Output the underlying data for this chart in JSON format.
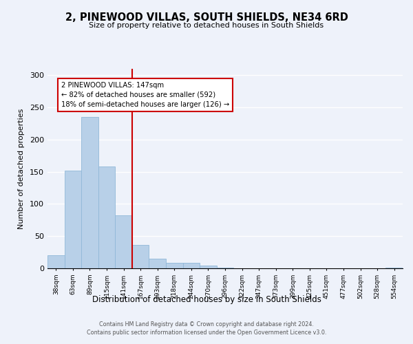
{
  "title": "2, PINEWOOD VILLAS, SOUTH SHIELDS, NE34 6RD",
  "subtitle": "Size of property relative to detached houses in South Shields",
  "xlabel": "Distribution of detached houses by size in South Shields",
  "ylabel": "Number of detached properties",
  "bin_labels": [
    "38sqm",
    "63sqm",
    "89sqm",
    "115sqm",
    "141sqm",
    "167sqm",
    "193sqm",
    "218sqm",
    "244sqm",
    "270sqm",
    "296sqm",
    "322sqm",
    "347sqm",
    "373sqm",
    "399sqm",
    "425sqm",
    "451sqm",
    "477sqm",
    "502sqm",
    "528sqm",
    "554sqm"
  ],
  "bar_values": [
    20,
    152,
    235,
    158,
    82,
    36,
    15,
    9,
    9,
    4,
    1,
    0,
    0,
    0,
    0,
    0,
    0,
    0,
    0,
    0,
    1
  ],
  "bar_color": "#b8d0e8",
  "bar_edge_color": "#90b8d8",
  "annotation_line1": "2 PINEWOOD VILLAS: 147sqm",
  "annotation_line2": "← 82% of detached houses are smaller (592)",
  "annotation_line3": "18% of semi-detached houses are larger (126) →",
  "annotation_box_color": "#ffffff",
  "annotation_box_edge": "#cc0000",
  "marker_line_color": "#cc0000",
  "ylim": [
    0,
    310
  ],
  "yticks": [
    0,
    50,
    100,
    150,
    200,
    250,
    300
  ],
  "footer1": "Contains HM Land Registry data © Crown copyright and database right 2024.",
  "footer2": "Contains public sector information licensed under the Open Government Licence v3.0.",
  "bg_color": "#eef2fa"
}
